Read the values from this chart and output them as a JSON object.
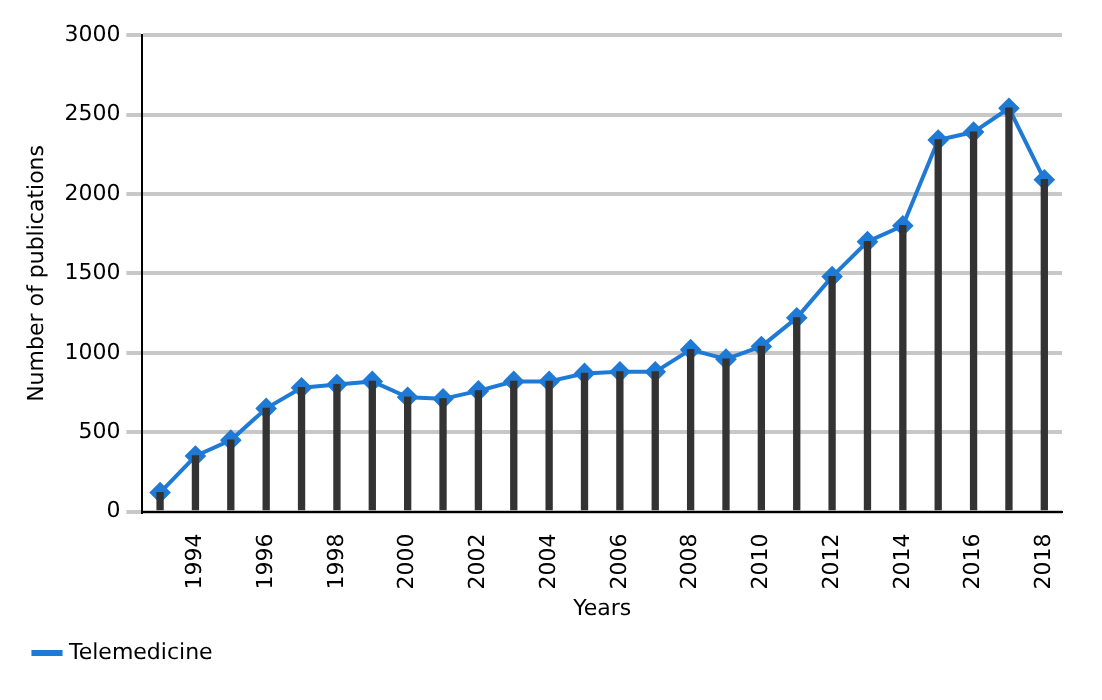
{
  "chart_data": {
    "type": "line",
    "xlabel": "Years",
    "ylabel": "Number of publications",
    "categories": [
      null,
      "1994",
      null,
      "1996",
      null,
      "1998",
      null,
      "2000",
      null,
      "2002",
      null,
      "2004",
      null,
      "2006",
      null,
      "2008",
      null,
      "2010",
      null,
      "2012",
      null,
      "2014",
      null,
      "2016",
      null,
      "2018"
    ],
    "series": [
      {
        "type": "bar",
        "color": "#333333",
        "values": [
          120,
          350,
          450,
          650,
          780,
          800,
          820,
          720,
          710,
          760,
          820,
          820,
          870,
          880,
          880,
          1020,
          960,
          1040,
          1220,
          1480,
          1700,
          1800,
          2340,
          2390,
          2540,
          2090
        ]
      },
      {
        "name": "Telemedicine",
        "color": "#1f7ad6",
        "values": [
          120,
          350,
          450,
          650,
          780,
          800,
          820,
          720,
          710,
          760,
          820,
          820,
          870,
          880,
          880,
          1020,
          960,
          1040,
          1220,
          1480,
          1700,
          1800,
          2340,
          2390,
          2540,
          2090
        ]
      }
    ],
    "ylim": [
      0,
      3000
    ],
    "yticks": [
      0,
      500,
      1000,
      1500,
      2000,
      2500,
      3000
    ],
    "grid": "y",
    "legend": "bottom left",
    "marker": "diamond",
    "line_style": "solid"
  }
}
